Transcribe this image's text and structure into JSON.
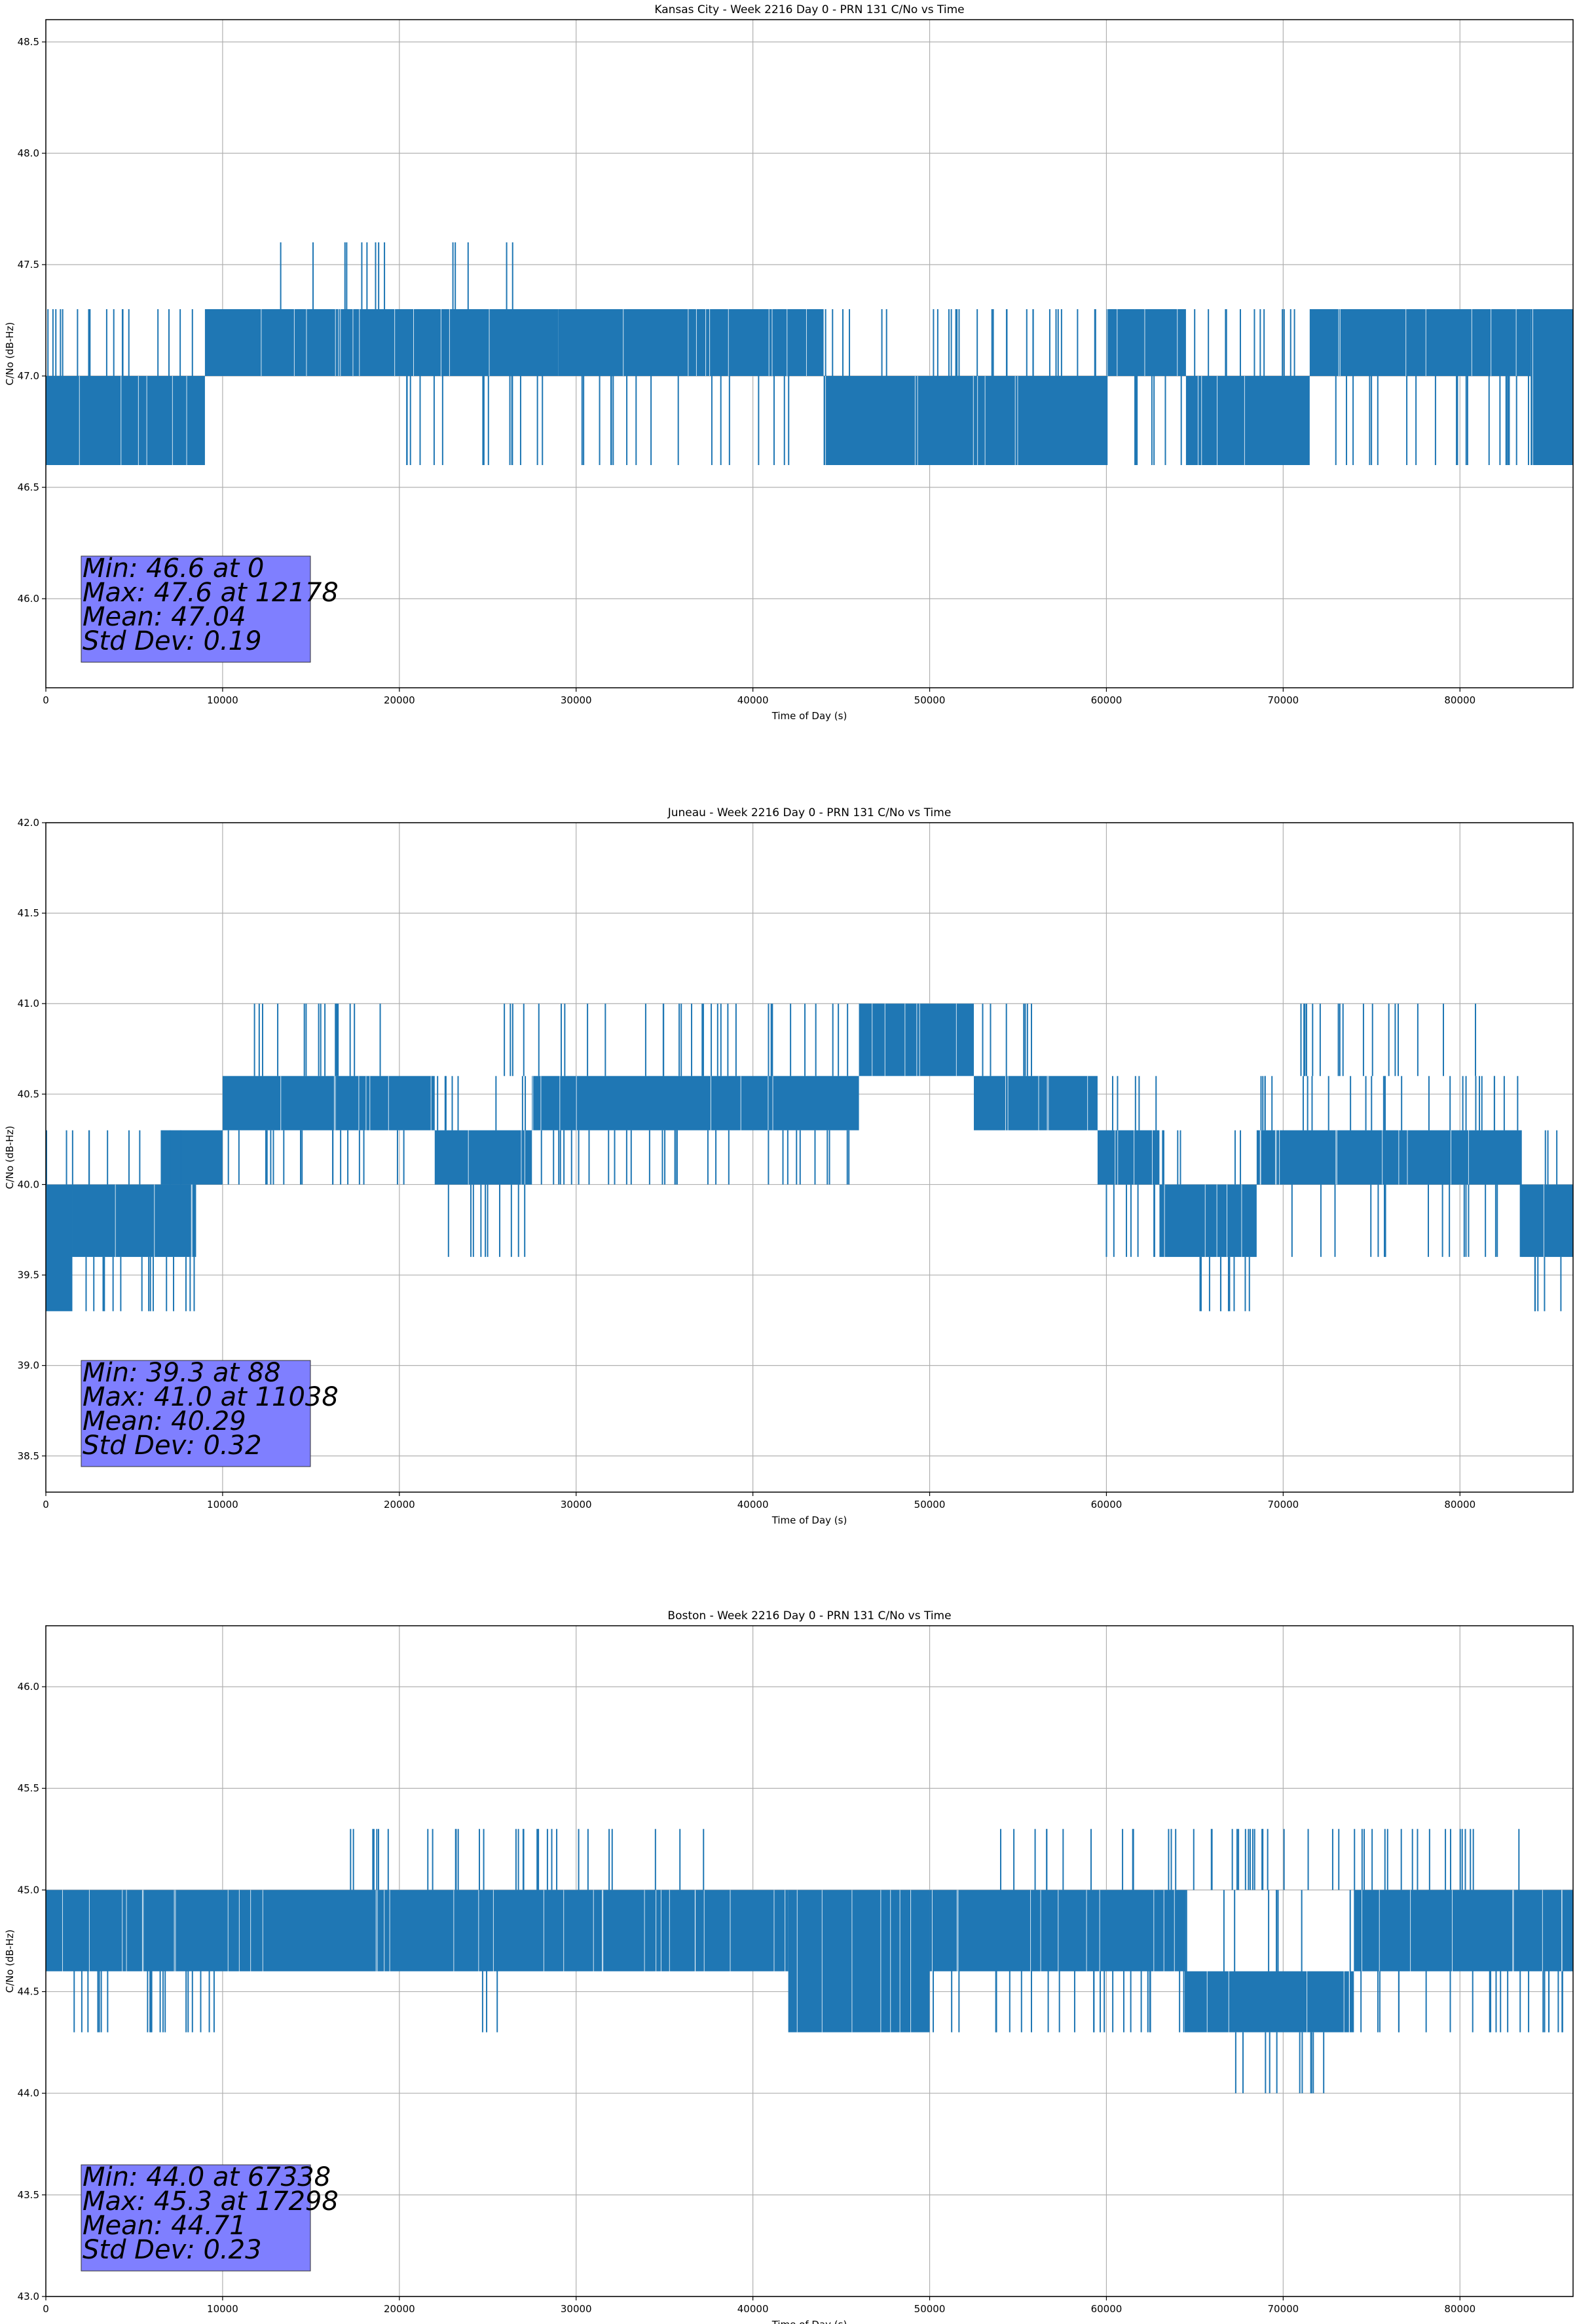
{
  "figure": {
    "panels_count": 3
  },
  "chart_data": [
    {
      "type": "line",
      "title": "Kansas City - Week 2216 Day 0 - PRN 131 C/No vs Time",
      "xlabel": "Time of Day (s)",
      "ylabel": "C/No (dB-Hz)",
      "xlim": [
        0,
        86400
      ],
      "ylim": [
        45.6,
        48.6
      ],
      "xticks": [
        0,
        10000,
        20000,
        30000,
        40000,
        50000,
        60000,
        70000,
        80000
      ],
      "xtick_labels": [
        "0",
        "10000",
        "20000",
        "30000",
        "40000",
        "50000",
        "60000",
        "70000",
        "80000"
      ],
      "yticks": [
        46.0,
        46.5,
        47.0,
        47.5,
        48.0,
        48.5
      ],
      "ytick_labels": [
        "46.0",
        "46.5",
        "47.0",
        "47.5",
        "48.0",
        "48.5"
      ],
      "grid": true,
      "color": "#1f77b4",
      "series": [
        {
          "bands": [
            {
              "x": [
                0,
                9000
              ],
              "y": [
                46.6,
                47.0
              ]
            },
            {
              "x": [
                9000,
                29000
              ],
              "y": [
                47.0,
                47.3
              ]
            },
            {
              "x": [
                29000,
                44000
              ],
              "y": [
                47.0,
                47.3
              ]
            },
            {
              "x": [
                44000,
                60000
              ],
              "y": [
                46.6,
                47.0
              ]
            },
            {
              "x": [
                60000,
                64500
              ],
              "y": [
                47.0,
                47.3
              ]
            },
            {
              "x": [
                64500,
                71500
              ],
              "y": [
                46.6,
                47.0
              ]
            },
            {
              "x": [
                71500,
                84000
              ],
              "y": [
                47.0,
                47.3
              ]
            },
            {
              "x": [
                84000,
                86400
              ],
              "y": [
                46.6,
                47.3
              ]
            }
          ],
          "levels": [
            46.6,
            47.0,
            47.3,
            47.6
          ],
          "spikes": [
            {
              "x": [
                12000,
                19500
              ],
              "from": 47.3,
              "to": 47.6
            },
            {
              "x": [
                22500,
                26800
              ],
              "from": 47.3,
              "to": 47.6
            },
            {
              "x": [
                20000,
                30000
              ],
              "from": 47.0,
              "to": 46.6
            },
            {
              "x": [
                30000,
                43000
              ],
              "from": 47.0,
              "to": 46.6
            },
            {
              "x": [
                0,
                9000
              ],
              "from": 47.0,
              "to": 47.3
            },
            {
              "x": [
                44000,
                60000
              ],
              "from": 47.0,
              "to": 47.3
            },
            {
              "x": [
                60000,
                64500
              ],
              "from": 47.0,
              "to": 46.6
            },
            {
              "x": [
                64500,
                71500
              ],
              "from": 47.0,
              "to": 47.3
            },
            {
              "x": [
                71500,
                84000
              ],
              "from": 47.0,
              "to": 46.6
            }
          ]
        }
      ],
      "stats": {
        "min_line": "Min: 46.6 at 0",
        "max_line": "Max: 47.6 at 12178",
        "mean_line": "Mean: 47.04",
        "std_line": "Std Dev: 0.19"
      },
      "stats_box_color": "#7f7fff"
    },
    {
      "type": "line",
      "title": "Juneau - Week 2216 Day 0 - PRN 131 C/No vs Time",
      "xlabel": "Time of Day (s)",
      "ylabel": "C/No (dB-Hz)",
      "xlim": [
        0,
        86400
      ],
      "ylim": [
        38.3,
        42.0
      ],
      "xticks": [
        0,
        10000,
        20000,
        30000,
        40000,
        50000,
        60000,
        70000,
        80000
      ],
      "xtick_labels": [
        "0",
        "10000",
        "20000",
        "30000",
        "40000",
        "50000",
        "60000",
        "70000",
        "80000"
      ],
      "yticks": [
        38.5,
        39.0,
        39.5,
        40.0,
        40.5,
        41.0,
        41.5,
        42.0
      ],
      "ytick_labels": [
        "38.5",
        "39.0",
        "39.5",
        "40.0",
        "40.5",
        "41.0",
        "41.5",
        "42.0"
      ],
      "grid": true,
      "color": "#1f77b4",
      "series": [
        {
          "bands": [
            {
              "x": [
                0,
                1500
              ],
              "y": [
                39.3,
                40.0
              ]
            },
            {
              "x": [
                1500,
                8500
              ],
              "y": [
                39.6,
                40.0
              ]
            },
            {
              "x": [
                6500,
                10000
              ],
              "y": [
                40.0,
                40.3
              ]
            },
            {
              "x": [
                10000,
                22000
              ],
              "y": [
                40.3,
                40.6
              ]
            },
            {
              "x": [
                22000,
                27500
              ],
              "y": [
                40.0,
                40.3
              ]
            },
            {
              "x": [
                27500,
                46000
              ],
              "y": [
                40.3,
                40.6
              ]
            },
            {
              "x": [
                46000,
                52500
              ],
              "y": [
                40.6,
                41.0
              ]
            },
            {
              "x": [
                52500,
                59500
              ],
              "y": [
                40.3,
                40.6
              ]
            },
            {
              "x": [
                59500,
                63000
              ],
              "y": [
                40.0,
                40.3
              ]
            },
            {
              "x": [
                63000,
                68500
              ],
              "y": [
                39.6,
                40.0
              ]
            },
            {
              "x": [
                68500,
                83500
              ],
              "y": [
                40.0,
                40.3
              ]
            },
            {
              "x": [
                83500,
                86400
              ],
              "y": [
                39.6,
                40.0
              ]
            }
          ],
          "levels": [
            39.3,
            39.6,
            40.0,
            40.3,
            40.6,
            41.0
          ],
          "spikes": [
            {
              "x": [
                10500,
                19500
              ],
              "from": 40.6,
              "to": 41.0
            },
            {
              "x": [
                25500,
                46000
              ],
              "from": 40.6,
              "to": 41.0
            },
            {
              "x": [
                52500,
                57000
              ],
              "from": 40.6,
              "to": 41.0
            },
            {
              "x": [
                10000,
                22000
              ],
              "from": 40.3,
              "to": 40.0
            },
            {
              "x": [
                22000,
                27500
              ],
              "from": 40.3,
              "to": 40.6
            },
            {
              "x": [
                22000,
                27500
              ],
              "from": 40.0,
              "to": 39.6
            },
            {
              "x": [
                27500,
                46000
              ],
              "from": 40.3,
              "to": 40.0
            },
            {
              "x": [
                59500,
                63000
              ],
              "from": 40.3,
              "to": 40.6
            },
            {
              "x": [
                59500,
                63000
              ],
              "from": 40.0,
              "to": 39.6
            },
            {
              "x": [
                63000,
                68500
              ],
              "from": 39.6,
              "to": 39.3
            },
            {
              "x": [
                63000,
                68500
              ],
              "from": 40.0,
              "to": 40.3
            },
            {
              "x": [
                68500,
                83500
              ],
              "from": 40.3,
              "to": 40.6
            },
            {
              "x": [
                70000,
                81000
              ],
              "from": 40.6,
              "to": 41.0
            },
            {
              "x": [
                68500,
                83500
              ],
              "from": 40.0,
              "to": 39.6
            },
            {
              "x": [
                83500,
                86400
              ],
              "from": 39.6,
              "to": 39.3
            },
            {
              "x": [
                83500,
                86400
              ],
              "from": 40.0,
              "to": 40.3
            },
            {
              "x": [
                0,
                8500
              ],
              "from": 40.0,
              "to": 40.3
            },
            {
              "x": [
                1500,
                8500
              ],
              "from": 39.6,
              "to": 39.3
            }
          ]
        }
      ],
      "stats": {
        "min_line": "Min: 39.3 at 88",
        "max_line": "Max: 41.0 at 11038",
        "mean_line": "Mean: 40.29",
        "std_line": "Std Dev: 0.32"
      },
      "stats_box_color": "#7f7fff"
    },
    {
      "type": "line",
      "title": "Boston - Week 2216 Day 0 - PRN 131 C/No vs Time",
      "xlabel": "Time of Day (s)",
      "ylabel": "C/No (dB-Hz)",
      "xlim": [
        0,
        86400
      ],
      "ylim": [
        43.0,
        46.3
      ],
      "xticks": [
        0,
        10000,
        20000,
        30000,
        40000,
        50000,
        60000,
        70000,
        80000
      ],
      "xtick_labels": [
        "0",
        "10000",
        "20000",
        "30000",
        "40000",
        "50000",
        "60000",
        "70000",
        "80000"
      ],
      "yticks": [
        43.0,
        43.5,
        44.0,
        44.5,
        45.0,
        45.5,
        46.0
      ],
      "ytick_labels": [
        "43.0",
        "43.5",
        "44.0",
        "44.5",
        "45.0",
        "45.5",
        "46.0"
      ],
      "grid": true,
      "color": "#1f77b4",
      "series": [
        {
          "bands": [
            {
              "x": [
                0,
                42000
              ],
              "y": [
                44.6,
                45.0
              ]
            },
            {
              "x": [
                42000,
                50000
              ],
              "y": [
                44.3,
                45.0
              ]
            },
            {
              "x": [
                50000,
                64500
              ],
              "y": [
                44.6,
                45.0
              ]
            },
            {
              "x": [
                64500,
                74000
              ],
              "y": [
                44.3,
                44.6
              ]
            },
            {
              "x": [
                74000,
                86400
              ],
              "y": [
                44.6,
                45.0
              ]
            }
          ],
          "levels": [
            44.0,
            44.3,
            44.6,
            45.0,
            45.3
          ],
          "spikes": [
            {
              "x": [
                17000,
                37500
              ],
              "from": 45.0,
              "to": 45.3
            },
            {
              "x": [
                53500,
                84000
              ],
              "from": 45.0,
              "to": 45.3
            },
            {
              "x": [
                500,
                10500
              ],
              "from": 44.6,
              "to": 44.3
            },
            {
              "x": [
                24000,
                26000
              ],
              "from": 44.6,
              "to": 44.3
            },
            {
              "x": [
                50000,
                64500
              ],
              "from": 44.6,
              "to": 44.3
            },
            {
              "x": [
                64500,
                74000
              ],
              "from": 44.6,
              "to": 45.0
            },
            {
              "x": [
                67300,
                72500
              ],
              "from": 44.3,
              "to": 44.0
            },
            {
              "x": [
                74000,
                86400
              ],
              "from": 44.6,
              "to": 44.3
            }
          ]
        }
      ],
      "stats": {
        "min_line": "Min: 44.0 at 67338",
        "max_line": "Max: 45.3 at 17298",
        "mean_line": "Mean: 44.71",
        "std_line": "Std Dev: 0.23"
      },
      "stats_box_color": "#7f7fff"
    }
  ]
}
